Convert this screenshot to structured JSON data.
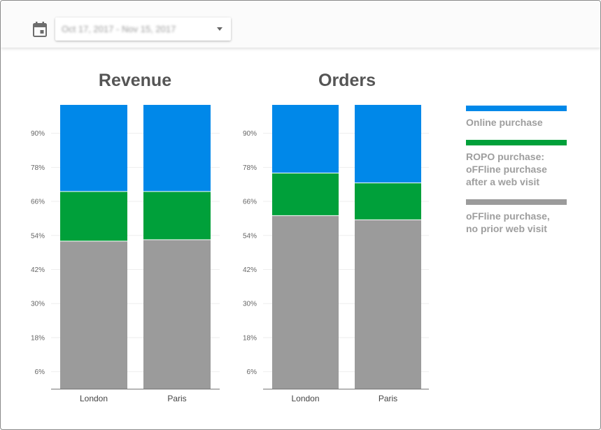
{
  "date_range": {
    "label": "Oct 17, 2017 - Nov 15, 2017"
  },
  "colors": {
    "online": "#0088e9",
    "ropo": "#00a03a",
    "offline": "#9b9b9b"
  },
  "legend": [
    {
      "key": "online",
      "label": "Online purchase",
      "color": "#0088e9"
    },
    {
      "key": "ropo",
      "label": "ROPO purchase:\noFFline purchase\nafter a web visit",
      "color": "#00a03a"
    },
    {
      "key": "offline",
      "label": "oFFline purchase,\nno prior web visit",
      "color": "#9b9b9b"
    }
  ],
  "chart_data": [
    {
      "type": "bar",
      "stacked": true,
      "title": "Revenue",
      "categories": [
        "London",
        "Paris"
      ],
      "y_ticks": [
        "6%",
        "18%",
        "30%",
        "42%",
        "54%",
        "66%",
        "78%",
        "90%"
      ],
      "ylim": [
        0,
        100
      ],
      "grid": true,
      "legend_position": "right",
      "series": [
        {
          "name": "oFFline purchase, no prior web visit",
          "key": "offline",
          "values": [
            52,
            52.5
          ]
        },
        {
          "name": "ROPO purchase: oFFline purchase after a web visit",
          "key": "ropo",
          "values": [
            17.5,
            17
          ]
        },
        {
          "name": "Online purchase",
          "key": "online",
          "values": [
            30.5,
            30.5
          ]
        }
      ]
    },
    {
      "type": "bar",
      "stacked": true,
      "title": "Orders",
      "categories": [
        "London",
        "Paris"
      ],
      "y_ticks": [
        "6%",
        "18%",
        "30%",
        "42%",
        "54%",
        "66%",
        "78%",
        "90%"
      ],
      "ylim": [
        0,
        100
      ],
      "grid": true,
      "legend_position": "right",
      "series": [
        {
          "name": "oFFline purchase, no prior web visit",
          "key": "offline",
          "values": [
            61,
            59.5
          ]
        },
        {
          "name": "ROPO purchase: oFFline purchase after a web visit",
          "key": "ropo",
          "values": [
            15,
            13
          ]
        },
        {
          "name": "Online purchase",
          "key": "online",
          "values": [
            24,
            27.5
          ]
        }
      ]
    }
  ]
}
